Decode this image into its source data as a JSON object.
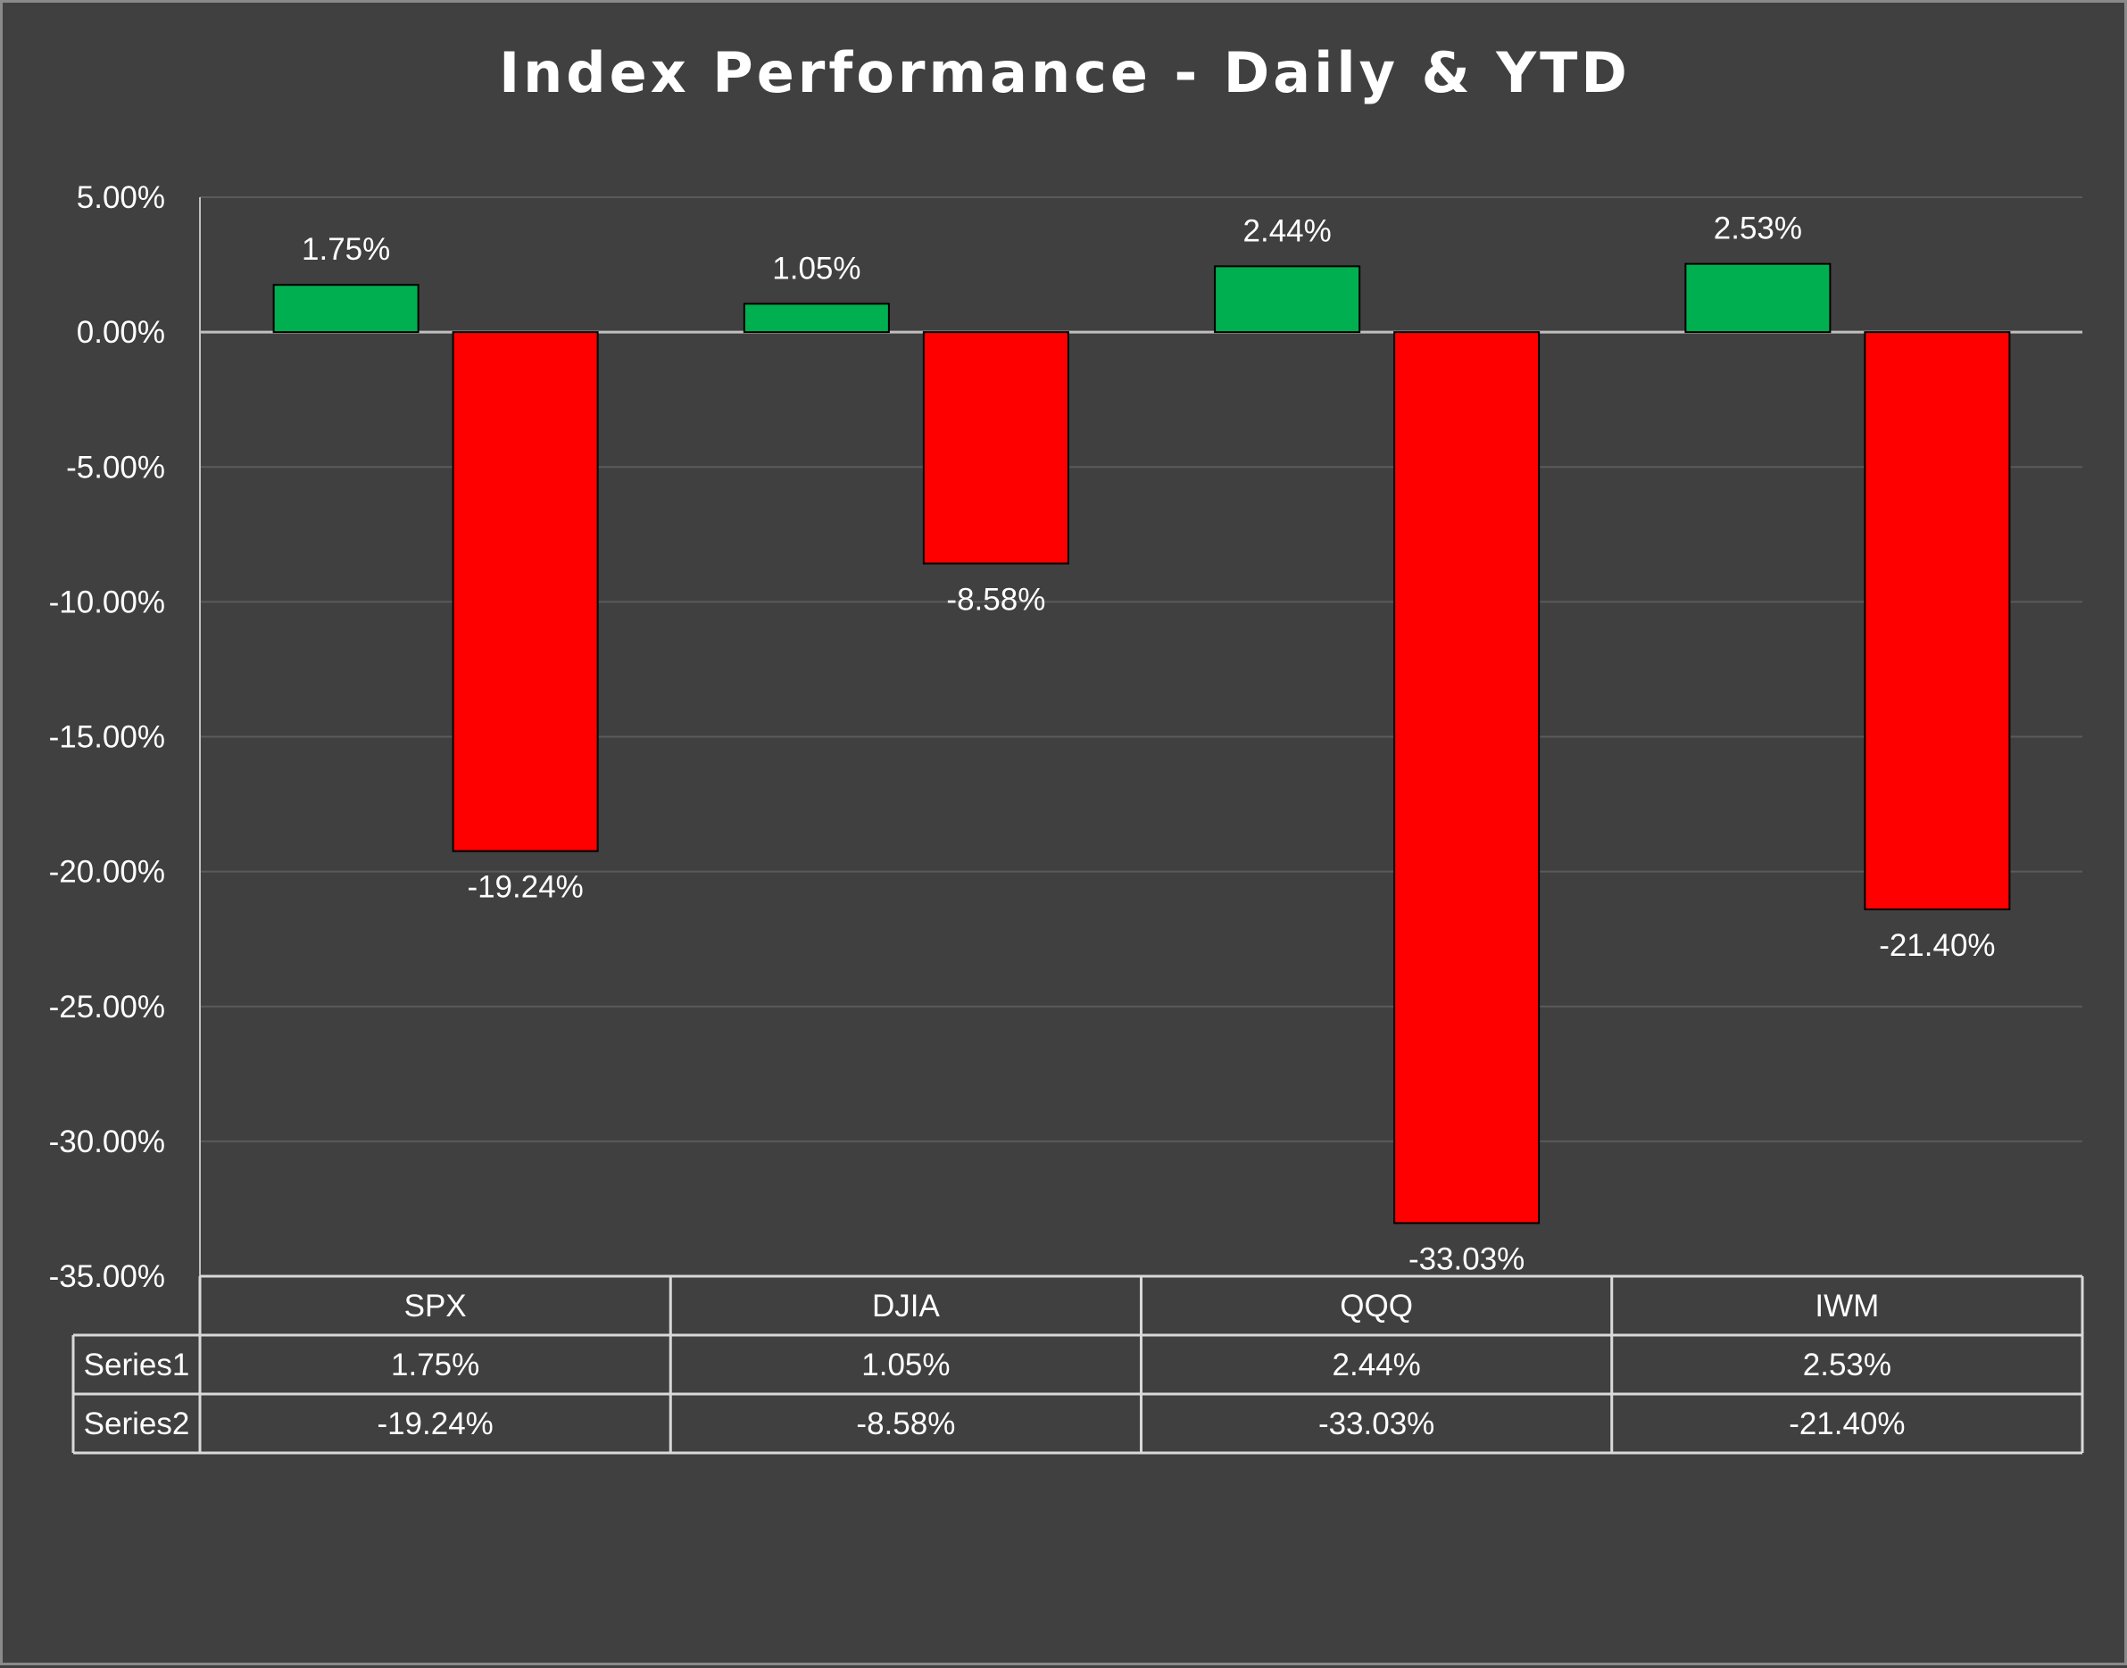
{
  "chart_data": {
    "type": "bar",
    "title": "Index Performance - Daily & YTD",
    "categories": [
      "SPX",
      "DJIA",
      "QQQ",
      "IWM"
    ],
    "series": [
      {
        "name": "Series1",
        "values": [
          1.75,
          1.05,
          2.44,
          2.53
        ],
        "labels": [
          "1.75%",
          "1.05%",
          "2.44%",
          "2.53%"
        ],
        "color": "#00b050"
      },
      {
        "name": "Series2",
        "values": [
          -19.24,
          -8.58,
          -33.03,
          -21.4
        ],
        "labels": [
          "-19.24%",
          "-8.58%",
          "-33.03%",
          "-21.40%"
        ],
        "color": "#ff0000"
      }
    ],
    "yticks": [
      5,
      0,
      -5,
      -10,
      -15,
      -20,
      -25,
      -30,
      -35
    ],
    "ytick_labels": [
      "5.00%",
      "0.00%",
      "-5.00%",
      "-10.00%",
      "-15.00%",
      "-20.00%",
      "-25.00%",
      "-30.00%",
      "-35.00%"
    ],
    "ylim": [
      -35,
      5
    ],
    "xlabel": "",
    "ylabel": "",
    "grid": true,
    "data_table": true,
    "colors": {
      "background": "#404040",
      "gridline": "#5a5a5a",
      "axis": "#bfbfbf",
      "text": "#ffffff",
      "bar_outline": "#000000"
    }
  }
}
